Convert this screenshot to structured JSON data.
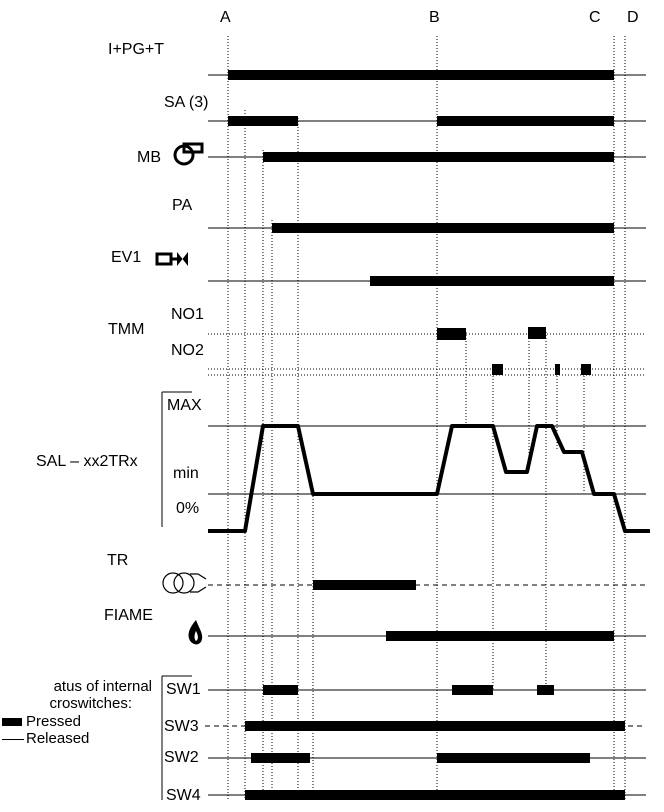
{
  "markers": [
    "A",
    "B",
    "C",
    "D"
  ],
  "signals": {
    "ipgt": "I+PG+T",
    "sa": "SA (3)",
    "mb": "MB",
    "pa": "PA",
    "ev1": "EV1",
    "tmm": "TMM",
    "no1": "NO1",
    "no2": "NO2",
    "sal": "SAL – xx2TRx",
    "sal_max": "MAX",
    "sal_min": "min",
    "sal_zero": "0%",
    "tr": "TR",
    "flame": "FIAME",
    "sw1": "SW1",
    "sw3": "SW3",
    "sw2": "SW2",
    "sw4": "SW4"
  },
  "legend": {
    "title_line1": "atus   of   internal",
    "title_line2": "croswitches:",
    "pressed": "Pressed",
    "released": "Released"
  },
  "icons": [
    "blower-motor-icon",
    "valve-icon",
    "transformer-icon",
    "flame-icon"
  ]
}
